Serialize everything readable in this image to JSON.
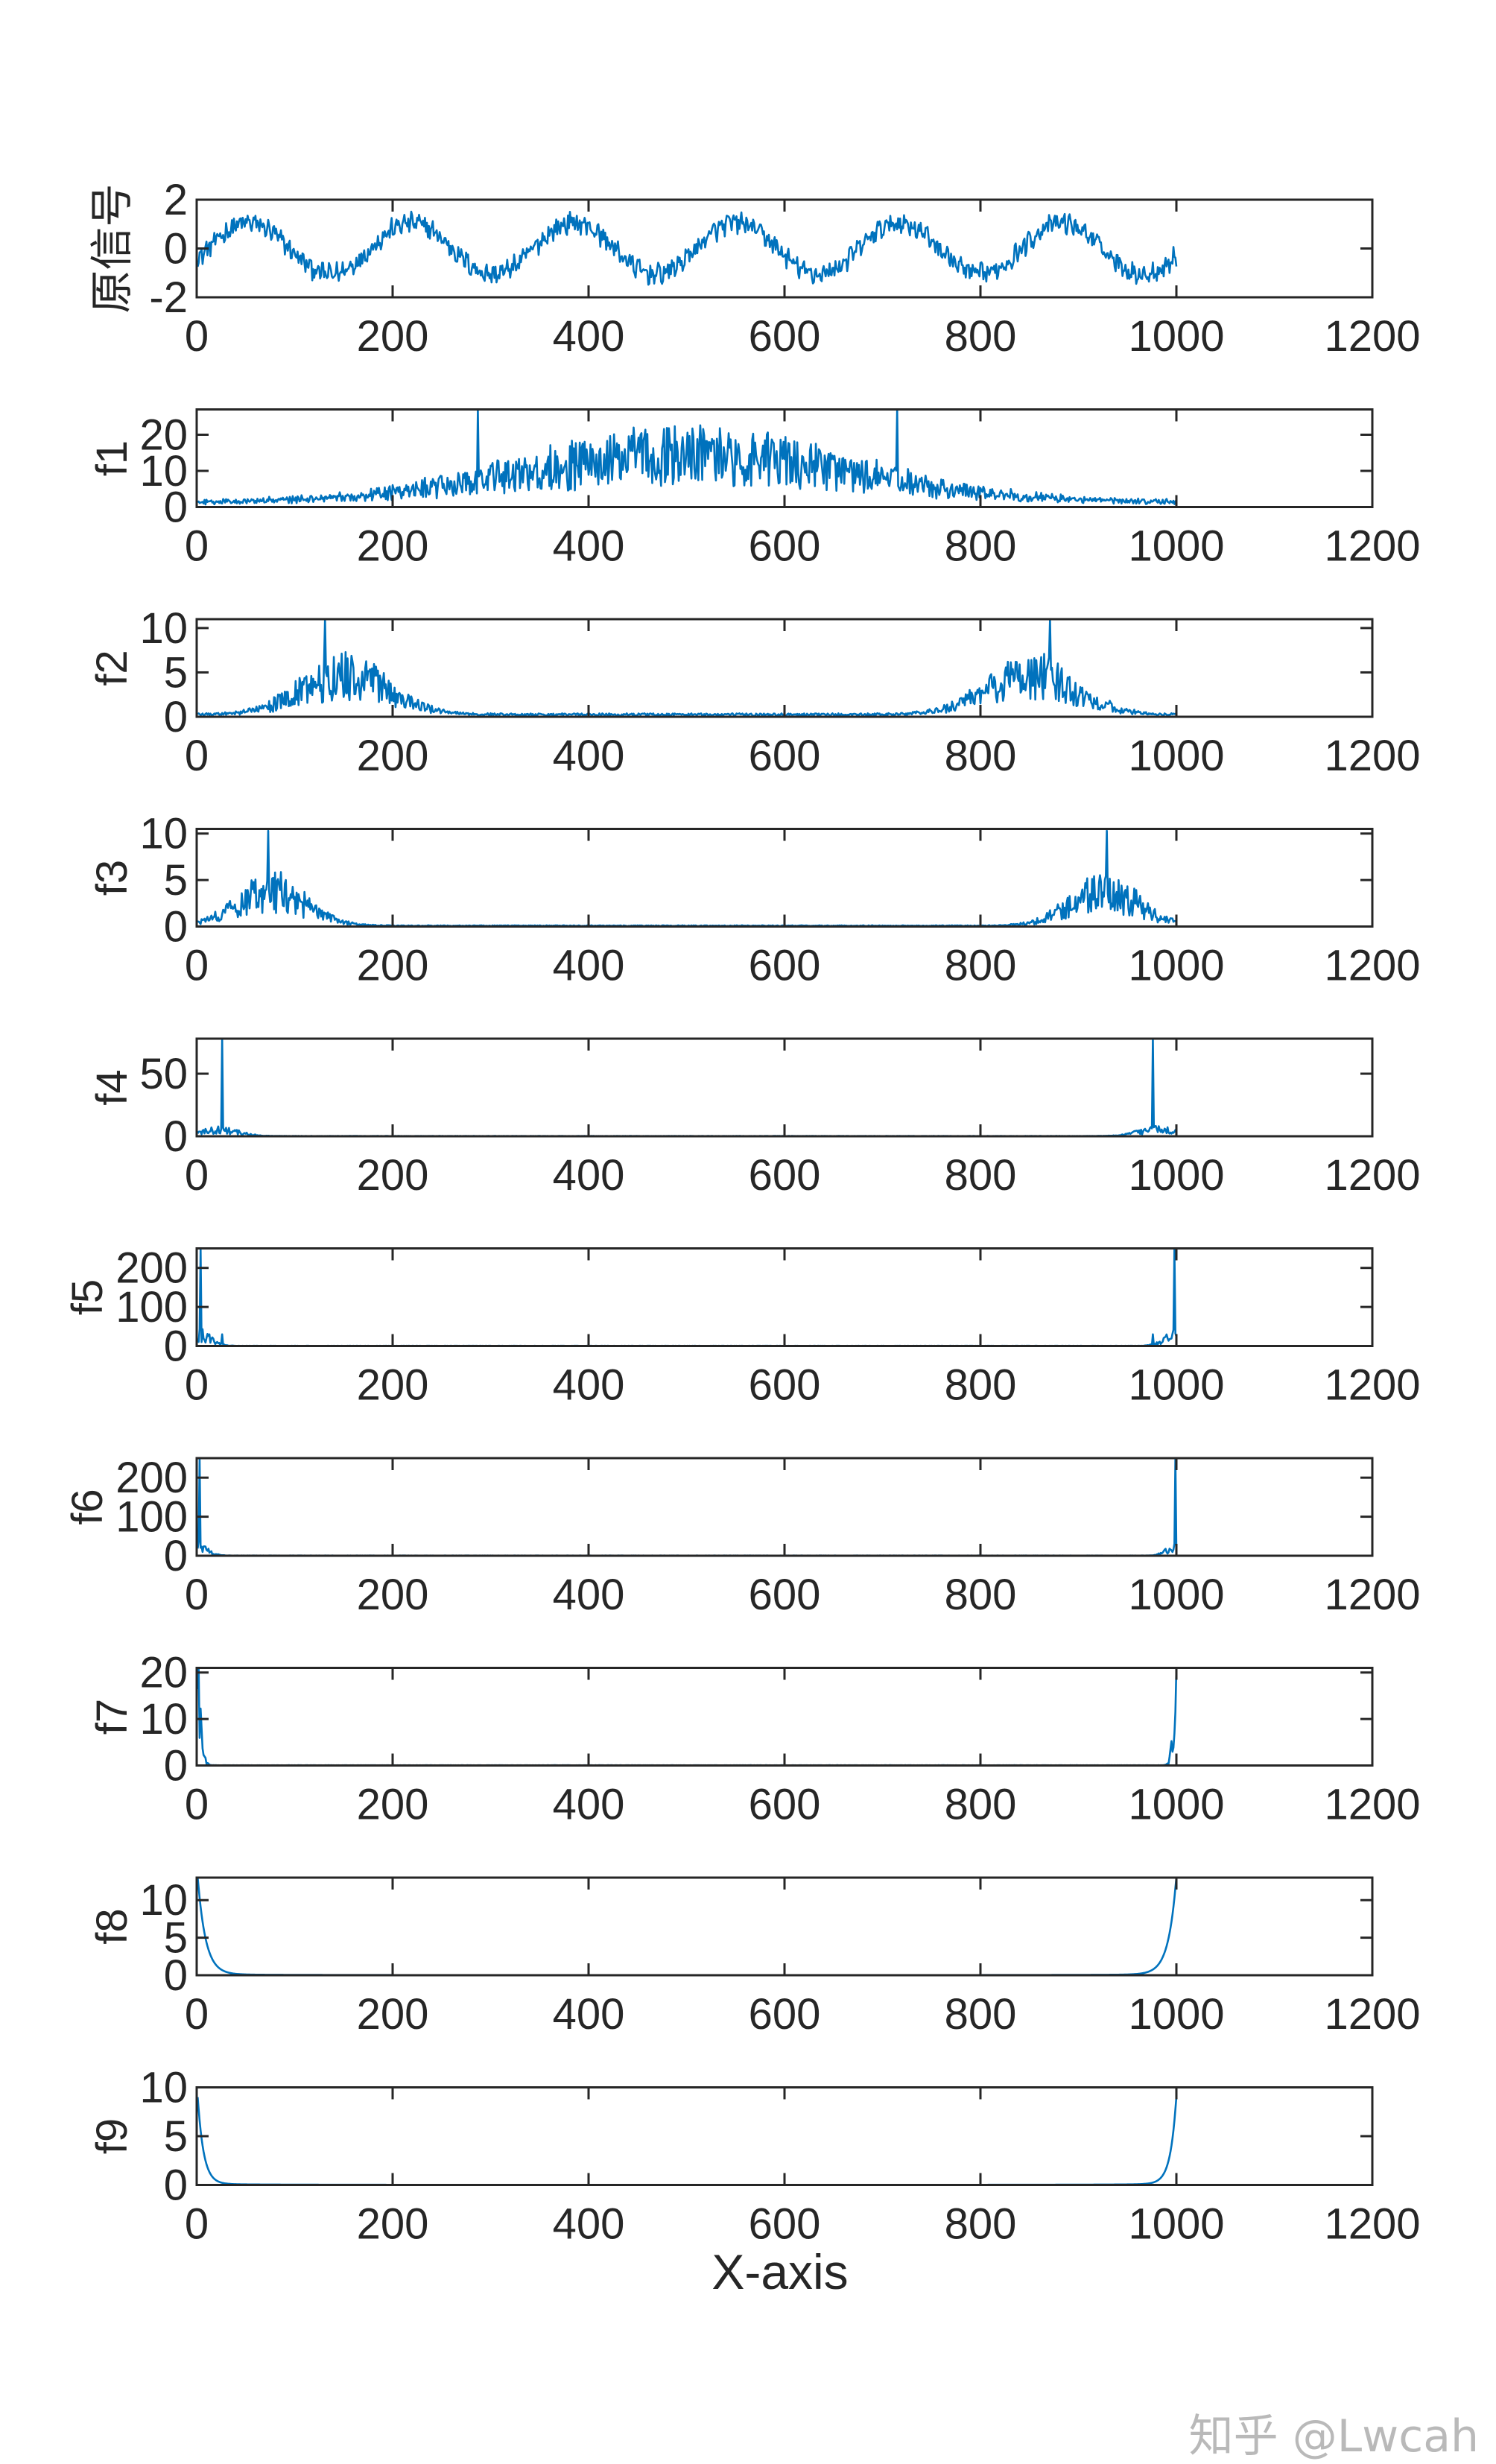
{
  "chart_data": [
    {
      "type": "line",
      "id": "orig",
      "ylabel": "原信号",
      "xlim": [
        0,
        1200
      ],
      "ylim": [
        -2,
        2
      ],
      "xticks": [
        0,
        200,
        400,
        600,
        800,
        1000,
        1200
      ],
      "yticks": [
        -2,
        0,
        2
      ],
      "kind": "signal",
      "n": 1000,
      "noise": 0.35,
      "series": [
        {
          "name": "",
          "color": "#0072BD"
        }
      ]
    },
    {
      "type": "line",
      "id": "f1",
      "ylabel": "f1",
      "xlim": [
        0,
        1200
      ],
      "ylim": [
        0,
        27
      ],
      "xticks": [
        0,
        200,
        400,
        600,
        800,
        1000,
        1200
      ],
      "yticks": [
        0,
        10,
        20
      ],
      "kind": "spectrum",
      "n": 1000,
      "peaks": [
        [
          286,
          27
        ],
        [
          714,
          27
        ]
      ],
      "envelope": {
        "center": 500,
        "width": 170,
        "amp": 9,
        "base": 1.5
      },
      "series": [
        {
          "name": "",
          "color": "#0072BD"
        }
      ]
    },
    {
      "type": "line",
      "id": "f2",
      "ylabel": "f2",
      "xlim": [
        0,
        1200
      ],
      "ylim": [
        0,
        11
      ],
      "xticks": [
        0,
        200,
        400,
        600,
        800,
        1000,
        1200
      ],
      "yticks": [
        0,
        5,
        10
      ],
      "kind": "spectrum",
      "n": 1000,
      "peaks": [
        [
          130,
          11
        ],
        [
          870,
          11
        ]
      ],
      "envelope": {
        "center": 150,
        "width": 45,
        "amp": 6,
        "base": 0.3
      },
      "series": [
        {
          "name": "",
          "color": "#0072BD"
        }
      ]
    },
    {
      "type": "line",
      "id": "f3",
      "ylabel": "f3",
      "xlim": [
        0,
        1200
      ],
      "ylim": [
        0,
        10.5
      ],
      "xticks": [
        0,
        200,
        400,
        600,
        800,
        1000,
        1200
      ],
      "yticks": [
        0,
        5,
        10
      ],
      "kind": "spectrum",
      "n": 1000,
      "peaks": [
        [
          72,
          10.3
        ],
        [
          928,
          10.3
        ]
      ],
      "envelope": {
        "center": 75,
        "width": 35,
        "amp": 5,
        "base": 0.1
      },
      "series": [
        {
          "name": "",
          "color": "#0072BD"
        }
      ]
    },
    {
      "type": "line",
      "id": "f4",
      "ylabel": "f4",
      "xlim": [
        0,
        1200
      ],
      "ylim": [
        0,
        78
      ],
      "xticks": [
        0,
        200,
        400,
        600,
        800,
        1000,
        1200
      ],
      "yticks": [
        0,
        50
      ],
      "kind": "spectrum",
      "n": 1000,
      "peaks": [
        [
          25,
          78
        ],
        [
          975,
          78
        ]
      ],
      "envelope": {
        "center": 20,
        "width": 20,
        "amp": 7,
        "base": 0.2
      },
      "series": [
        {
          "name": "",
          "color": "#0072BD"
        }
      ]
    },
    {
      "type": "line",
      "id": "f5",
      "ylabel": "f5",
      "xlim": [
        0,
        1200
      ],
      "ylim": [
        0,
        250
      ],
      "xticks": [
        0,
        200,
        400,
        600,
        800,
        1000,
        1200
      ],
      "yticks": [
        0,
        100,
        200
      ],
      "kind": "spectrum",
      "n": 1000,
      "peaks": [
        [
          3,
          250
        ],
        [
          997,
          250
        ],
        [
          25,
          30
        ],
        [
          975,
          30
        ]
      ],
      "envelope": {
        "center": 0,
        "width": 12,
        "amp": 40,
        "base": 0.5
      },
      "series": [
        {
          "name": "",
          "color": "#0072BD"
        }
      ]
    },
    {
      "type": "line",
      "id": "f6",
      "ylabel": "f6",
      "xlim": [
        0,
        1200
      ],
      "ylim": [
        0,
        250
      ],
      "xticks": [
        0,
        200,
        400,
        600,
        800,
        1000,
        1200
      ],
      "yticks": [
        0,
        100,
        200
      ],
      "kind": "spectrum",
      "n": 1000,
      "peaks": [
        [
          2,
          250
        ],
        [
          998,
          250
        ]
      ],
      "envelope": {
        "center": 0,
        "width": 10,
        "amp": 30,
        "base": 0.5
      },
      "series": [
        {
          "name": "",
          "color": "#0072BD"
        }
      ]
    },
    {
      "type": "line",
      "id": "f7",
      "ylabel": "f7",
      "xlim": [
        0,
        1200
      ],
      "ylim": [
        0,
        21
      ],
      "xticks": [
        0,
        200,
        400,
        600,
        800,
        1000,
        1200
      ],
      "yticks": [
        0,
        10,
        20
      ],
      "kind": "spectrum",
      "n": 1000,
      "peaks": [
        [
          1,
          21
        ],
        [
          999,
          21
        ]
      ],
      "envelope": {
        "center": 0,
        "width": 4,
        "amp": 15,
        "base": 0.05
      },
      "series": [
        {
          "name": "",
          "color": "#0072BD"
        }
      ]
    },
    {
      "type": "line",
      "id": "f8",
      "ylabel": "f8",
      "xlim": [
        0,
        1200
      ],
      "ylim": [
        0,
        13
      ],
      "xticks": [
        0,
        200,
        400,
        600,
        800,
        1000,
        1200
      ],
      "yticks": [
        0,
        5,
        10
      ],
      "kind": "decay",
      "n": 1000,
      "amp": 13,
      "tau": 8,
      "base": 0.2,
      "series": [
        {
          "name": "",
          "color": "#0072BD"
        }
      ]
    },
    {
      "type": "line",
      "id": "f9",
      "ylabel": "f9",
      "xlim": [
        0,
        1200
      ],
      "ylim": [
        0,
        10
      ],
      "xticks": [
        0,
        200,
        400,
        600,
        800,
        1000,
        1200
      ],
      "yticks": [
        0,
        5,
        10
      ],
      "kind": "decay",
      "n": 1000,
      "amp": 9,
      "tau": 6,
      "base": 0.15,
      "series": [
        {
          "name": "",
          "color": "#0072BD"
        }
      ]
    }
  ],
  "xlabel": "X-axis",
  "watermark": "知乎 @Lwcah"
}
